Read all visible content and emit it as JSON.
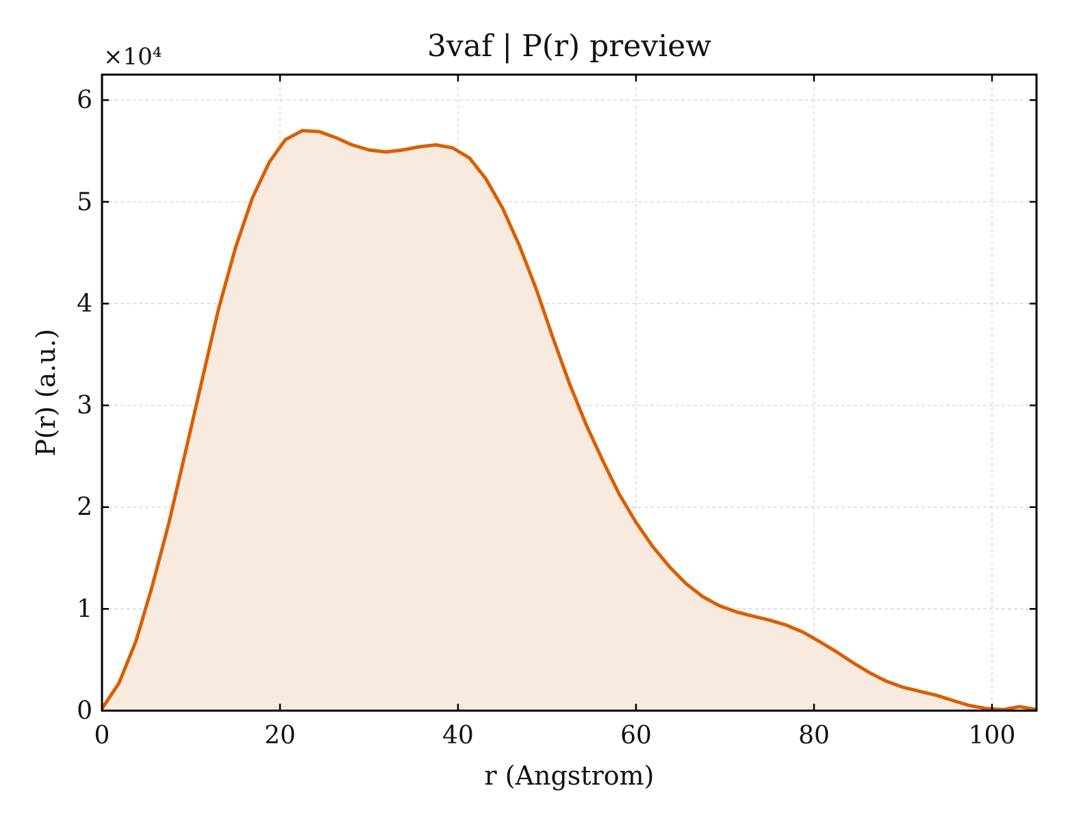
{
  "chart_data": {
    "type": "area",
    "title": "3vaf | P(r) preview",
    "xlabel": "r (Angstrom)",
    "ylabel": "P(r) (a.u.)",
    "y_multiplier_label": "×10⁴",
    "xlim": [
      0,
      105
    ],
    "ylim": [
      0,
      6.25
    ],
    "xticks": [
      0,
      20,
      40,
      60,
      80,
      100
    ],
    "yticks": [
      0,
      1,
      2,
      3,
      4,
      5,
      6
    ],
    "grid": true,
    "legend": "none",
    "line_color": "#d95f02",
    "fill_color": "#f9eadf",
    "series": [
      {
        "x": [
          0,
          1.9,
          3.8,
          5.6,
          7.5,
          9.4,
          11.3,
          13.1,
          15.0,
          16.9,
          18.8,
          20.6,
          22.5,
          24.4,
          26.3,
          28.1,
          30.0,
          31.9,
          33.8,
          35.6,
          37.5,
          39.4,
          41.3,
          43.1,
          45.0,
          46.9,
          48.8,
          50.6,
          52.5,
          54.4,
          56.3,
          58.1,
          60.0,
          61.9,
          63.8,
          65.6,
          67.5,
          69.4,
          71.3,
          73.1,
          75.0,
          76.9,
          78.8,
          80.6,
          82.5,
          84.4,
          86.3,
          88.1,
          90.0,
          91.9,
          93.8,
          95.6,
          97.5,
          99.4,
          101.3,
          103.1,
          105.0
        ],
        "y": [
          0.02,
          0.27,
          0.68,
          1.21,
          1.84,
          2.55,
          3.27,
          3.95,
          4.55,
          5.04,
          5.39,
          5.61,
          5.7,
          5.69,
          5.63,
          5.56,
          5.51,
          5.49,
          5.51,
          5.54,
          5.56,
          5.53,
          5.43,
          5.23,
          4.94,
          4.57,
          4.14,
          3.68,
          3.22,
          2.81,
          2.45,
          2.13,
          1.85,
          1.61,
          1.41,
          1.25,
          1.12,
          1.03,
          0.97,
          0.93,
          0.89,
          0.84,
          0.77,
          0.68,
          0.58,
          0.47,
          0.37,
          0.29,
          0.23,
          0.19,
          0.15,
          0.1,
          0.05,
          0.02,
          0.01,
          0.04,
          0.01
        ]
      }
    ]
  }
}
